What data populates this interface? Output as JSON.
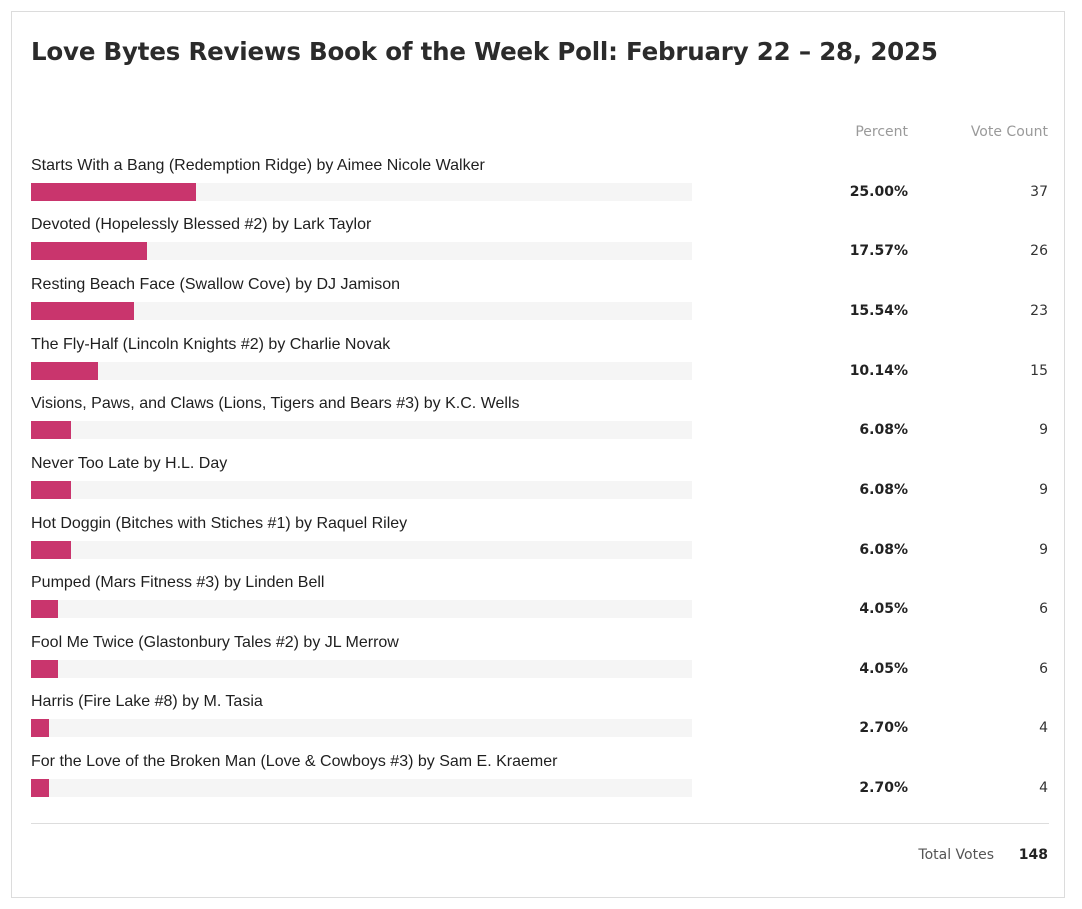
{
  "poll": {
    "title": "Love Bytes Reviews Book of the Week Poll: February 22 – 28, 2025",
    "headers": {
      "percent": "Percent",
      "votes": "Vote Count"
    },
    "bar_color": "#c9356d",
    "track_color": "#f5f5f5",
    "answers": [
      {
        "label": "Starts With a Bang (Redemption Ridge) by Aimee Nicole Walker",
        "percent": "25.00%",
        "fraction": 0.25,
        "votes": "37"
      },
      {
        "label": "Devoted (Hopelessly Blessed #2) by Lark Taylor",
        "percent": "17.57%",
        "fraction": 0.1757,
        "votes": "26"
      },
      {
        "label": "Resting Beach Face (Swallow Cove) by DJ Jamison",
        "percent": "15.54%",
        "fraction": 0.1554,
        "votes": "23"
      },
      {
        "label": "The Fly-Half (Lincoln Knights #2) by Charlie Novak",
        "percent": "10.14%",
        "fraction": 0.1014,
        "votes": "15"
      },
      {
        "label": "Visions, Paws, and Claws (Lions, Tigers and Bears #3) by K.C. Wells",
        "percent": "6.08%",
        "fraction": 0.0608,
        "votes": "9"
      },
      {
        "label": "Never Too Late by H.L. Day",
        "percent": "6.08%",
        "fraction": 0.0608,
        "votes": "9"
      },
      {
        "label": "Hot Doggin (Bitches with Stiches #1) by Raquel Riley",
        "percent": "6.08%",
        "fraction": 0.0608,
        "votes": "9"
      },
      {
        "label": "Pumped (Mars Fitness #3) by Linden Bell",
        "percent": "4.05%",
        "fraction": 0.0405,
        "votes": "6"
      },
      {
        "label": "Fool Me Twice (Glastonbury Tales #2) by JL Merrow",
        "percent": "4.05%",
        "fraction": 0.0405,
        "votes": "6"
      },
      {
        "label": "Harris (Fire Lake #8) by M. Tasia",
        "percent": "2.70%",
        "fraction": 0.027,
        "votes": "4"
      },
      {
        "label": "For the Love of the Broken Man (Love & Cowboys #3) by Sam E. Kraemer",
        "percent": "2.70%",
        "fraction": 0.027,
        "votes": "4"
      }
    ],
    "total": {
      "label": "Total Votes",
      "value": "148"
    }
  }
}
